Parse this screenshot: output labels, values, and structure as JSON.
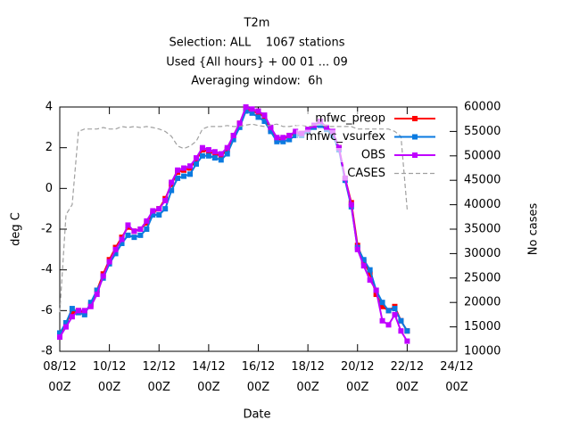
{
  "chart_data": {
    "type": "line",
    "title": "T2m",
    "subtitle": [
      "Selection: ALL    1067 stations",
      "Used {All hours} + 00 01 ... 09",
      "Averaging window:  6h"
    ],
    "xlabel": "Date",
    "ylabel": "deg C",
    "y2label": "No cases",
    "x": [
      "08/12 00Z",
      "08/12 06Z",
      "08/12 12Z",
      "08/12 18Z",
      "09/12 00Z",
      "09/12 06Z",
      "09/12 12Z",
      "09/12 18Z",
      "10/12 00Z",
      "10/12 06Z",
      "10/12 12Z",
      "10/12 18Z",
      "11/12 00Z",
      "11/12 06Z",
      "11/12 12Z",
      "11/12 18Z",
      "12/12 00Z",
      "12/12 06Z",
      "12/12 12Z",
      "12/12 18Z",
      "13/12 00Z",
      "13/12 06Z",
      "13/12 12Z",
      "13/12 18Z",
      "14/12 00Z",
      "14/12 06Z",
      "14/12 12Z",
      "14/12 18Z",
      "15/12 00Z",
      "15/12 06Z",
      "15/12 12Z",
      "15/12 18Z",
      "16/12 00Z",
      "16/12 06Z",
      "16/12 12Z",
      "16/12 18Z",
      "17/12 00Z",
      "17/12 06Z",
      "17/12 12Z",
      "17/12 18Z",
      "18/12 00Z",
      "18/12 06Z",
      "18/12 12Z",
      "18/12 18Z",
      "19/12 00Z",
      "19/12 06Z",
      "19/12 12Z",
      "19/12 18Z",
      "20/12 00Z",
      "20/12 06Z",
      "20/12 12Z",
      "20/12 18Z",
      "21/12 00Z",
      "21/12 06Z",
      "21/12 12Z",
      "21/12 18Z",
      "22/12 00Z"
    ],
    "series": [
      {
        "name": "mfwc_preop",
        "color": "#ff0000",
        "marker": true,
        "values": [
          -7.2,
          -6.6,
          -6.1,
          -6.0,
          -6.1,
          -5.7,
          -5.0,
          -4.2,
          -3.5,
          -2.9,
          -2.4,
          -1.9,
          -2.1,
          -2.0,
          -1.7,
          -1.2,
          -1.0,
          -0.5,
          0.2,
          0.8,
          0.9,
          1.0,
          1.4,
          1.9,
          1.8,
          1.7,
          1.6,
          1.9,
          2.6,
          3.2,
          3.9,
          3.8,
          3.7,
          3.5,
          2.9,
          2.4,
          2.4,
          2.6,
          2.7,
          2.7,
          2.8,
          3.0,
          3.2,
          3.0,
          2.7,
          2.0,
          0.5,
          -0.7,
          -2.8,
          -3.6,
          -4.2,
          -5.2,
          -5.8,
          -6.0,
          -5.8,
          -6.5,
          -7.0
        ]
      },
      {
        "name": "mfwc_vsurfex",
        "color": "#0a7ae0",
        "marker": true,
        "values": [
          -7.1,
          -6.6,
          -5.9,
          -6.1,
          -6.2,
          -5.6,
          -5.0,
          -4.4,
          -3.7,
          -3.2,
          -2.7,
          -2.3,
          -2.4,
          -2.3,
          -2.0,
          -1.3,
          -1.3,
          -1.0,
          -0.1,
          0.5,
          0.6,
          0.7,
          1.2,
          1.6,
          1.6,
          1.5,
          1.4,
          1.7,
          2.4,
          3.0,
          3.8,
          3.7,
          3.5,
          3.3,
          2.8,
          2.3,
          2.3,
          2.4,
          2.6,
          2.6,
          2.8,
          3.0,
          3.1,
          2.9,
          2.6,
          1.9,
          0.4,
          -0.9,
          -2.9,
          -3.5,
          -4.0,
          -5.0,
          -5.6,
          -6.0,
          -5.9,
          -6.5,
          -7.0
        ]
      },
      {
        "name": "OBS",
        "color": "#c000ff",
        "marker": true,
        "values": [
          -7.3,
          -6.8,
          -6.3,
          -6.0,
          -6.0,
          -5.8,
          -5.2,
          -4.3,
          -3.6,
          -3.0,
          -2.5,
          -1.8,
          -2.1,
          -2.0,
          -1.6,
          -1.1,
          -1.0,
          -0.6,
          0.3,
          0.9,
          1.0,
          1.1,
          1.5,
          2.0,
          1.9,
          1.8,
          1.7,
          2.0,
          2.6,
          3.2,
          4.0,
          3.9,
          3.8,
          3.6,
          3.0,
          2.5,
          2.5,
          2.6,
          2.8,
          2.7,
          2.9,
          3.1,
          3.3,
          3.0,
          2.8,
          2.0,
          0.5,
          -0.8,
          -3.0,
          -3.8,
          -4.5,
          -5.0,
          -6.5,
          -6.7,
          -6.2,
          -7.0,
          -7.5
        ]
      },
      {
        "name": "CASES",
        "color": "#a0a0a0",
        "marker": false,
        "dashed": true,
        "axis": "y2",
        "values": [
          18000,
          38000,
          40000,
          55000,
          55500,
          55500,
          55500,
          55800,
          55500,
          55500,
          56000,
          55800,
          56000,
          55800,
          56000,
          55800,
          55500,
          55000,
          54000,
          52000,
          51500,
          52000,
          53000,
          55500,
          56000,
          56000,
          56000,
          56200,
          56000,
          56000,
          56300,
          56500,
          56200,
          56000,
          56300,
          56500,
          56000,
          56000,
          56200,
          56300,
          56000,
          56200,
          56500,
          56000,
          56000,
          56000,
          56000,
          56000,
          55500,
          55500,
          55500,
          55500,
          55500,
          55500,
          55000,
          54000,
          39000
        ]
      }
    ],
    "xlim": [
      "08/12 00Z",
      "24/12 00Z"
    ],
    "xticks": [
      "08/12 00Z",
      "10/12 00Z",
      "12/12 00Z",
      "14/12 00Z",
      "16/12 00Z",
      "18/12 00Z",
      "20/12 00Z",
      "22/12 00Z",
      "24/12 00Z"
    ],
    "ylim": [
      -8,
      4
    ],
    "yticks": [
      -8,
      -6,
      -4,
      -2,
      0,
      2,
      4
    ],
    "y2lim": [
      10000,
      60000
    ],
    "y2ticks": [
      10000,
      15000,
      20000,
      25000,
      30000,
      35000,
      40000,
      45000,
      50000,
      55000,
      60000
    ],
    "legend": "top right",
    "grid": false
  }
}
